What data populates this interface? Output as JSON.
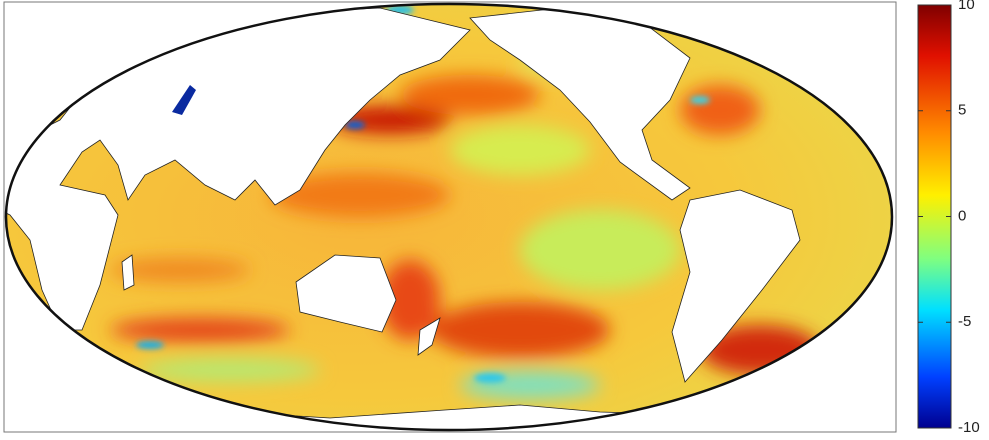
{
  "colorbar": {
    "lim": [
      -10,
      10
    ],
    "ticks": [
      -10,
      -5,
      0,
      5,
      10
    ]
  }
}
